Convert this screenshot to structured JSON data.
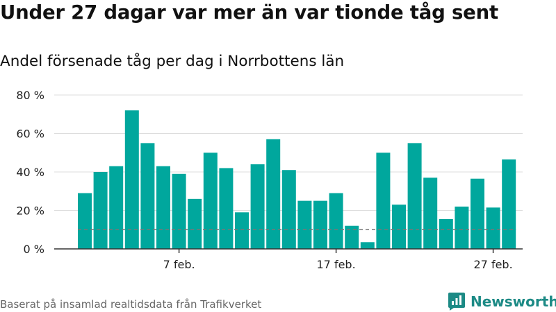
{
  "header": {
    "title": "Under 27 dagar var mer än var tionde tåg sent",
    "subtitle": "Andel försenade tåg per dag i Norrbottens län"
  },
  "footer": {
    "source": "Baserat på insamlad realtidsdata från Trafikverket",
    "brand": "Newsworthy"
  },
  "colors": {
    "bar": "#00a79d",
    "reference_line": "#777777",
    "gridline": "#dddddd",
    "axis": "#333333",
    "brand": "#1c8a85"
  },
  "icons": {
    "brand_logo": "newsworthy-logo-icon"
  },
  "chart_data": {
    "type": "bar",
    "title": "Under 27 dagar var mer än var tionde tåg sent",
    "subtitle": "Andel försenade tåg per dag i Norrbottens län",
    "x_unit": "day of February",
    "x": [
      1,
      2,
      3,
      4,
      5,
      6,
      7,
      8,
      9,
      10,
      11,
      12,
      13,
      14,
      15,
      16,
      17,
      18,
      19,
      20,
      21,
      22,
      23,
      24,
      25,
      26,
      27,
      28
    ],
    "values": [
      29,
      40,
      43,
      72,
      55,
      43,
      39,
      26,
      50,
      42,
      19,
      44,
      57,
      41,
      25,
      25,
      29,
      12,
      3.5,
      50,
      23,
      55,
      37,
      15.5,
      22,
      36.5,
      21.5,
      46.5
    ],
    "y_unit": "%",
    "ylim": [
      0,
      80
    ],
    "y_ticks": [
      0,
      20,
      40,
      60,
      80
    ],
    "y_tick_labels": [
      "0 %",
      "20 %",
      "40 %",
      "60 %",
      "80 %"
    ],
    "x_tick_days": [
      7,
      17,
      27
    ],
    "x_tick_labels": [
      "7 feb.",
      "17 feb.",
      "27 feb."
    ],
    "reference_line": {
      "value": 10,
      "style": "dashed"
    },
    "grid": true,
    "legend": "none"
  }
}
